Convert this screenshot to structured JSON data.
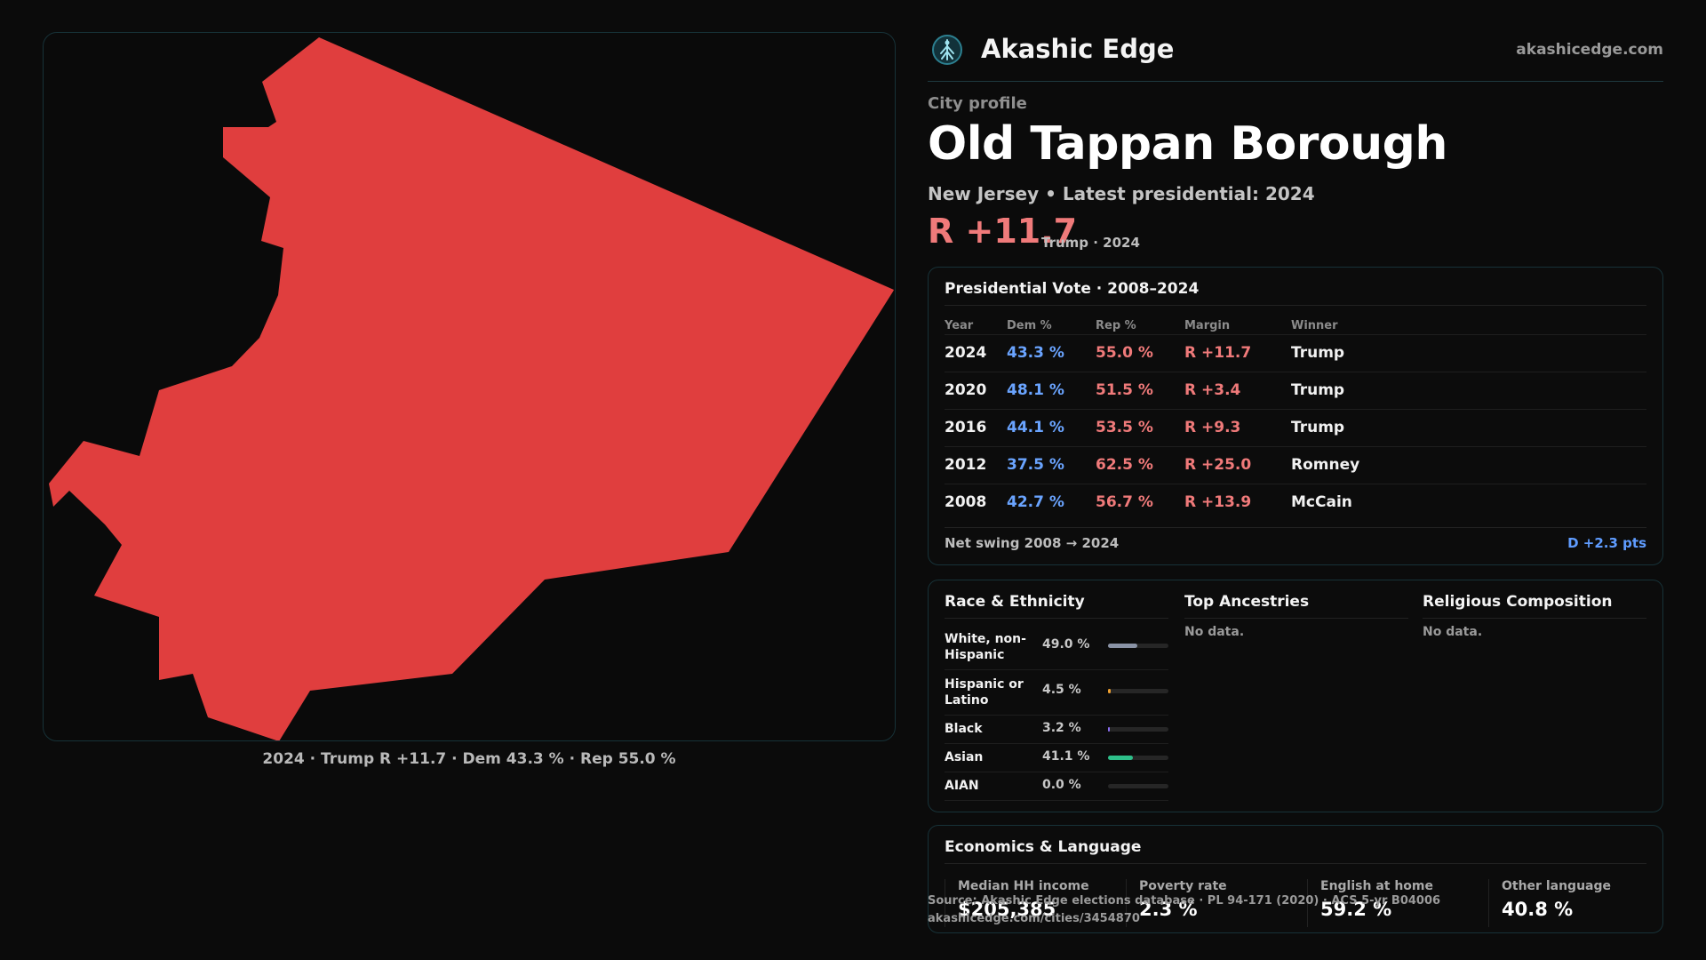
{
  "map": {
    "fill_color": "#e03e3e",
    "caption": "2024 · Trump R +11.7 · Dem 43.3 % · Rep 55.0 %"
  },
  "brand": {
    "name": "Akashic Edge",
    "url": "akashicedge.com",
    "logo_icon": "akashic-tree-icon"
  },
  "profile": {
    "eyebrow": "City profile",
    "title": "Old Tappan Borough",
    "subtitle": "New Jersey • Latest presidential: 2024",
    "margin": "R +11.7",
    "margin_sub": "Trump · 2024"
  },
  "vote": {
    "title": "Presidential Vote · 2008–2024",
    "headers": {
      "year": "Year",
      "dem": "Dem %",
      "rep": "Rep %",
      "margin": "Margin",
      "winner": "Winner"
    },
    "rows": [
      {
        "year": "2024",
        "dem": "43.3 %",
        "rep": "55.0 %",
        "margin": "R +11.7",
        "winner": "Trump"
      },
      {
        "year": "2020",
        "dem": "48.1 %",
        "rep": "51.5 %",
        "margin": "R +3.4",
        "winner": "Trump"
      },
      {
        "year": "2016",
        "dem": "44.1 %",
        "rep": "53.5 %",
        "margin": "R +9.3",
        "winner": "Trump"
      },
      {
        "year": "2012",
        "dem": "37.5 %",
        "rep": "62.5 %",
        "margin": "R +25.0",
        "winner": "Romney"
      },
      {
        "year": "2008",
        "dem": "42.7 %",
        "rep": "56.7 %",
        "margin": "R +13.9",
        "winner": "McCain"
      }
    ],
    "swing_label": "Net swing 2008 → 2024",
    "swing_value": "D +2.3 pts"
  },
  "race": {
    "title": "Race & Ethnicity",
    "rows": [
      {
        "label": "White, non-Hispanic",
        "value": "49.0 %",
        "fraction": 0.49,
        "color": "#8a93a6"
      },
      {
        "label": "Hispanic or Latino",
        "value": "4.5 %",
        "fraction": 0.045,
        "color": "#f0a030"
      },
      {
        "label": "Black",
        "value": "3.2 %",
        "fraction": 0.032,
        "color": "#8a6cf0"
      },
      {
        "label": "Asian",
        "value": "41.1 %",
        "fraction": 0.411,
        "color": "#2ec08a"
      },
      {
        "label": "AIAN",
        "value": "0.0 %",
        "fraction": 0.0,
        "color": "#888888"
      }
    ]
  },
  "ancestries": {
    "title": "Top Ancestries",
    "empty": "No data."
  },
  "religion": {
    "title": "Religious Composition",
    "empty": "No data."
  },
  "economics": {
    "title": "Economics & Language",
    "cells": [
      {
        "label": "Median HH income",
        "value": "$205,385"
      },
      {
        "label": "Poverty rate",
        "value": "2.3 %"
      },
      {
        "label": "English at home",
        "value": "59.2 %"
      },
      {
        "label": "Other language",
        "value": "40.8 %"
      }
    ]
  },
  "source": {
    "line1": "Source: Akashic Edge elections database · PL 94-171 (2020) · ACS 5-yr B04006",
    "line2": "akashicedge.com/cities/3454870"
  }
}
